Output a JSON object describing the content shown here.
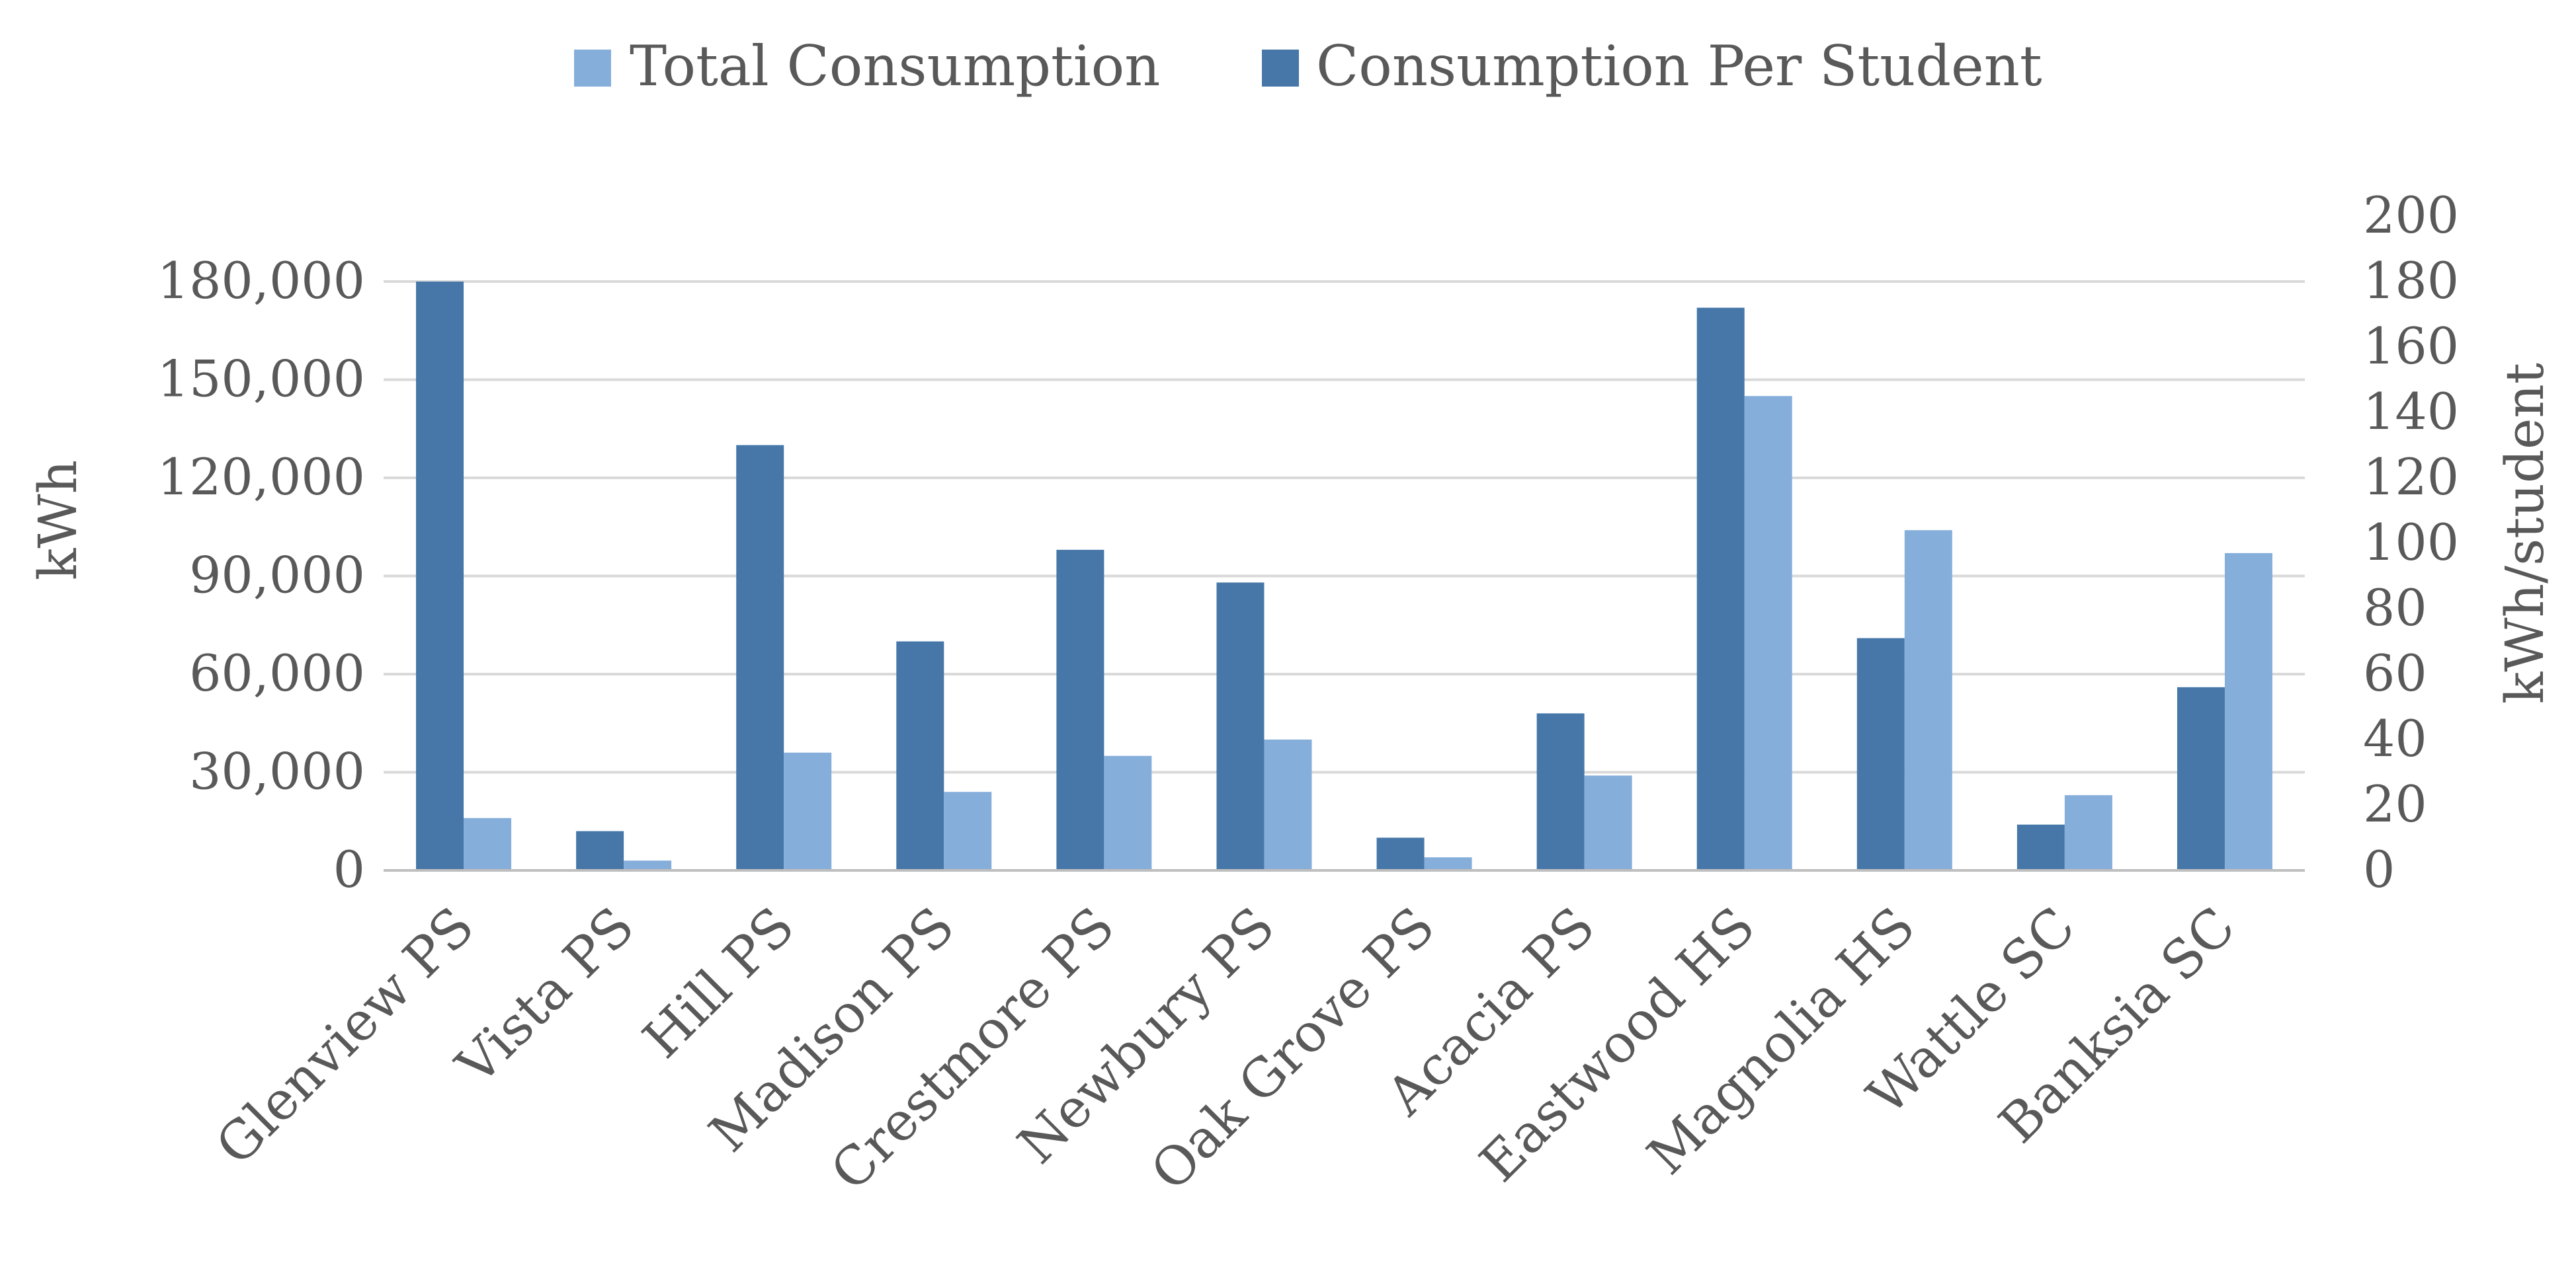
{
  "chart_data": {
    "type": "bar",
    "title": "",
    "categories": [
      "Glenview PS",
      "Vista PS",
      "Hill PS",
      "Madison PS",
      "Crestmore PS",
      "Newbury PS",
      "Oak Grove PS",
      "Acacia PS",
      "Eastwood HS",
      "Magnolia HS",
      "Wattle SC",
      "Banksia SC"
    ],
    "series": [
      {
        "name": "Consumption Per Student",
        "axis": "right",
        "color": "#4677a8",
        "values": [
          180,
          12,
          130,
          70,
          98,
          88,
          10,
          48,
          172,
          71,
          14,
          56
        ]
      },
      {
        "name": "Total Consumption",
        "axis": "left",
        "color": "#86aedb",
        "values": [
          16000,
          3000,
          36000,
          24000,
          35000,
          40000,
          4000,
          29000,
          145000,
          104000,
          23000,
          97000
        ]
      }
    ],
    "legend": {
      "position": "top-center",
      "entries": [
        "Total Consumption",
        "Consumption Per Student"
      ]
    },
    "y_left": {
      "label": "kWh",
      "ylim": [
        0,
        200000
      ],
      "ticks": [
        "0",
        "30,000",
        "60,000",
        "90,000",
        "120,000",
        "150,000",
        "180,000"
      ],
      "tick_values": [
        0,
        30000,
        60000,
        90000,
        120000,
        150000,
        180000
      ]
    },
    "y_right": {
      "label": "kWh/student",
      "ylim": [
        0,
        200
      ],
      "ticks": [
        "0",
        "20",
        "40",
        "60",
        "80",
        "100",
        "120",
        "140",
        "160",
        "180",
        "200"
      ],
      "tick_values": [
        0,
        20,
        40,
        60,
        80,
        100,
        120,
        140,
        160,
        180,
        200
      ]
    },
    "grid": true
  },
  "colors": {
    "grid": "#d9d9d9",
    "axis_line": "#bfbfbf",
    "text": "#595959"
  }
}
